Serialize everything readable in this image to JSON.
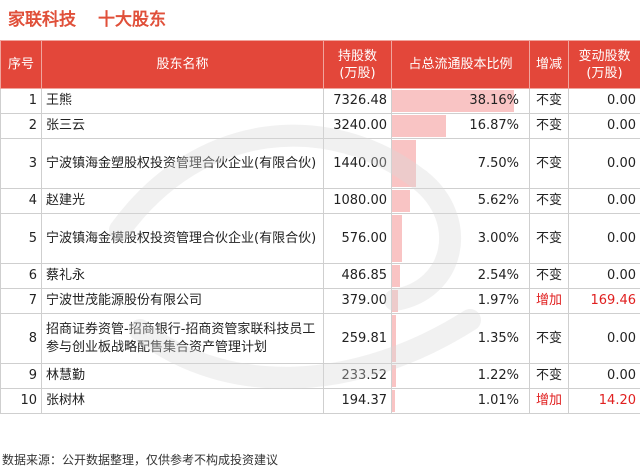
{
  "header": {
    "company": "家联科技",
    "title": "十大股东"
  },
  "columns": {
    "idx": "序号",
    "name": "股东名称",
    "shares": "持股数\n(万股)",
    "ratio": "占总流通股本比例",
    "change": "增减",
    "delta": "变动股数\n(万股)"
  },
  "rows": [
    {
      "idx": "1",
      "name": "王熊",
      "shares": "7326.48",
      "ratio": "38.16%",
      "change": "不变",
      "delta": "0.00"
    },
    {
      "idx": "2",
      "name": "张三云",
      "shares": "3240.00",
      "ratio": "16.87%",
      "change": "不变",
      "delta": "0.00"
    },
    {
      "idx": "3",
      "name": "宁波镇海金塑股权投资管理合伙企业(有限合伙)",
      "shares": "1440.00",
      "ratio": "7.50%",
      "change": "不变",
      "delta": "0.00"
    },
    {
      "idx": "4",
      "name": "赵建光",
      "shares": "1080.00",
      "ratio": "5.62%",
      "change": "不变",
      "delta": "0.00"
    },
    {
      "idx": "5",
      "name": "宁波镇海金模股权投资管理合伙企业(有限合伙)",
      "shares": "576.00",
      "ratio": "3.00%",
      "change": "不变",
      "delta": "0.00"
    },
    {
      "idx": "6",
      "name": "蔡礼永",
      "shares": "486.85",
      "ratio": "2.54%",
      "change": "不变",
      "delta": "0.00"
    },
    {
      "idx": "7",
      "name": "宁波世茂能源股份有限公司",
      "shares": "379.00",
      "ratio": "1.97%",
      "change": "增加",
      "delta": "169.46"
    },
    {
      "idx": "8",
      "name": "招商证券资管-招商银行-招商资管家联科技员工参与创业板战略配售集合资产管理计划",
      "shares": "259.81",
      "ratio": "1.35%",
      "change": "不变",
      "delta": "0.00"
    },
    {
      "idx": "9",
      "name": "林慧勤",
      "shares": "233.52",
      "ratio": "1.22%",
      "change": "不变",
      "delta": "0.00"
    },
    {
      "idx": "10",
      "name": "张树林",
      "shares": "194.37",
      "ratio": "1.01%",
      "change": "增加",
      "delta": "14.20"
    }
  ],
  "chart_data": {
    "type": "table",
    "title": "十大股东",
    "columns": [
      "序号",
      "股东名称",
      "持股数(万股)",
      "占总流通股本比例",
      "增减",
      "变动股数(万股)"
    ],
    "holders": [
      "王熊",
      "张三云",
      "宁波镇海金塑股权投资管理合伙企业(有限合伙)",
      "赵建光",
      "宁波镇海金模股权投资管理合伙企业(有限合伙)",
      "蔡礼永",
      "宁波世茂能源股份有限公司",
      "招商证券资管-招商银行-招商资管家联科技员工参与创业板战略配售集合资产管理计划",
      "林慧勤",
      "张树林"
    ],
    "shares_wan": [
      7326.48,
      3240.0,
      1440.0,
      1080.0,
      576.0,
      486.85,
      379.0,
      259.81,
      233.52,
      194.37
    ],
    "ratio_percent": [
      38.16,
      16.87,
      7.5,
      5.62,
      3.0,
      2.54,
      1.97,
      1.35,
      1.22,
      1.01
    ],
    "change": [
      "不变",
      "不变",
      "不变",
      "不变",
      "不变",
      "不变",
      "增加",
      "不变",
      "不变",
      "增加"
    ],
    "change_shares_wan": [
      0.0,
      0.0,
      0.0,
      0.0,
      0.0,
      0.0,
      169.46,
      0.0,
      0.0,
      14.2
    ]
  },
  "colors": {
    "header_bg": "#e3473a",
    "bar": "#f9c4c4",
    "increase": "#e02020",
    "title": "#e0503a"
  },
  "footer": "数据来源：公开数据整理，仅供参考不构成投资建议"
}
